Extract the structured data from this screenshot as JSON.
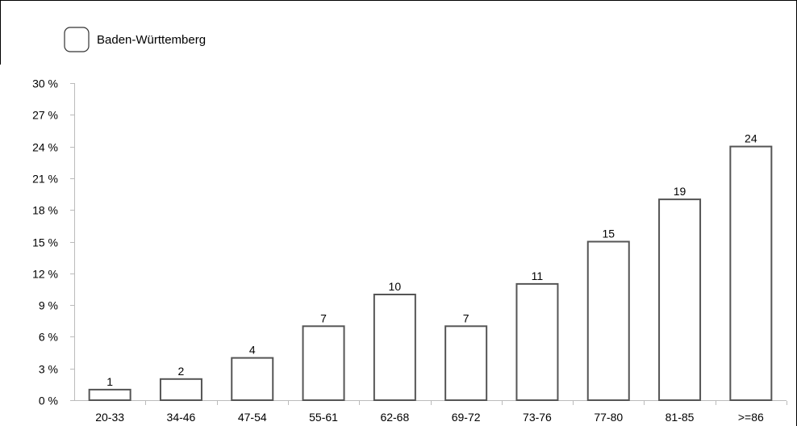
{
  "chart_data": {
    "type": "bar",
    "categories": [
      "20-33",
      "34-46",
      "47-54",
      "55-61",
      "62-68",
      "69-72",
      "73-76",
      "77-80",
      "81-85",
      ">=86"
    ],
    "series": [
      {
        "name": "Baden-Württemberg",
        "values": [
          1,
          2,
          4,
          7,
          10,
          7,
          11,
          15,
          19,
          24
        ]
      }
    ],
    "data_labels": [
      "1",
      "2",
      "4",
      "7",
      "10",
      "7",
      "11",
      "15",
      "19",
      "24"
    ],
    "y_ticks": [
      0,
      3,
      6,
      9,
      12,
      15,
      18,
      21,
      24,
      27,
      30
    ],
    "y_tick_labels": [
      "0 %",
      "3 %",
      "6 %",
      "9 %",
      "12 %",
      "15 %",
      "18 %",
      "21 %",
      "24 %",
      "27 %",
      "30 %"
    ],
    "ylim": [
      0,
      30
    ],
    "grid": false,
    "legend_position": "top-left",
    "bar_fill": "#ffffff",
    "bar_stroke": "#555555"
  }
}
